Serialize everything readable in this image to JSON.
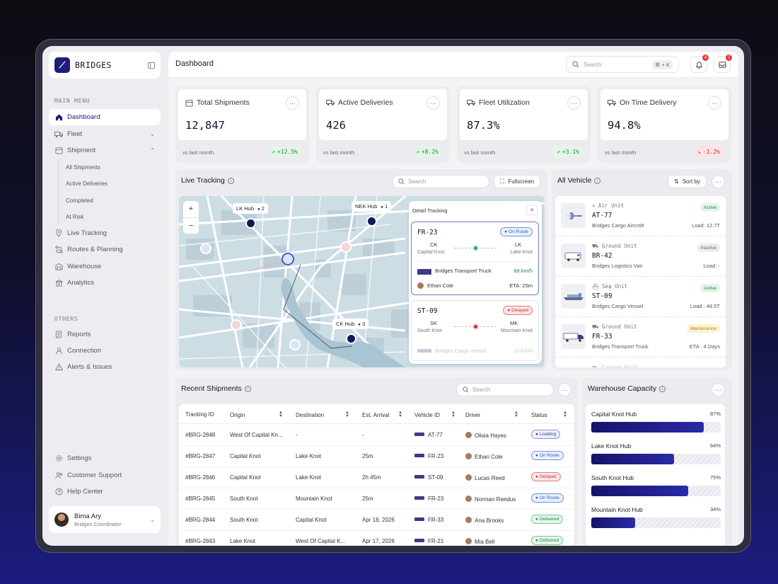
{
  "app": {
    "brand": "BRIDGES",
    "page_title": "Dashboard"
  },
  "topbar": {
    "search_placeholder": "Search",
    "shortcut": "⌘ + K",
    "notifications_count": "4",
    "messages_count": "7"
  },
  "sidebar": {
    "main_menu_label": "MAIN MENU",
    "items": [
      {
        "label": "Dashboard",
        "icon": "home-icon",
        "active": true
      },
      {
        "label": "Fleet",
        "icon": "truck-icon"
      },
      {
        "label": "Shipment",
        "icon": "box-icon"
      },
      {
        "label": "Live Tracking",
        "icon": "pin-icon"
      },
      {
        "label": "Routes & Planning",
        "icon": "route-icon"
      },
      {
        "label": "Warehouse",
        "icon": "warehouse-icon"
      },
      {
        "label": "Analytics",
        "icon": "analytics-icon"
      }
    ],
    "shipment_sub": [
      "All Shipments",
      "Active Deliveries",
      "Completed",
      "At Risk"
    ],
    "others_label": "OTHERS",
    "others": [
      {
        "label": "Reports",
        "icon": "report-icon"
      },
      {
        "label": "Connection",
        "icon": "users-icon"
      },
      {
        "label": "Alerts & Issues",
        "icon": "alert-icon"
      }
    ],
    "bottom": [
      {
        "label": "Settings",
        "icon": "gear-icon"
      },
      {
        "label": "Customer Support",
        "icon": "support-icon"
      },
      {
        "label": "Help Center",
        "icon": "help-icon"
      }
    ],
    "user": {
      "name": "Bima Ary",
      "role": "Bridges Coordinator"
    }
  },
  "stats": [
    {
      "title": "Total Shipments",
      "value": "12,847",
      "vs": "vs last month",
      "change": "+12.5%",
      "dir": "up"
    },
    {
      "title": "Active Deliveries",
      "value": "426",
      "vs": "vs last month",
      "change": "+8.2%",
      "dir": "up"
    },
    {
      "title": "Fleet Utilization",
      "value": "87.3%",
      "vs": "vs last month",
      "change": "+3.1%",
      "dir": "up"
    },
    {
      "title": "On Time Delivery",
      "value": "94.8%",
      "vs": "vs last month",
      "change": "-1.2%",
      "dir": "down"
    }
  ],
  "live_tracking": {
    "title": "Live Tracking",
    "search_placeholder": "Search",
    "fullscreen": "Fullscreen",
    "zoom_in": "+",
    "zoom_out": "−",
    "hubs": [
      {
        "name": "LK Hub",
        "count": "2"
      },
      {
        "name": "NEK Hub",
        "count": "1"
      },
      {
        "name": "CK Hub",
        "count": "3"
      }
    ],
    "detail": {
      "title": "Detail Tracking",
      "cards": [
        {
          "id": "FR-23",
          "status": "On Route",
          "from_code": "CK",
          "from_name": "Capital Knot",
          "to_code": "LK",
          "to_name": "Lake Knot",
          "vehicle": "Bridges Transport Truck",
          "speed": "68 km/h",
          "driver": "Ethan Cole",
          "eta": "ETA: 25m"
        },
        {
          "id": "ST-09",
          "status": "Delayed",
          "from_code": "SK",
          "from_name": "South Knot",
          "to_code": "MK",
          "to_name": "Mountain Knot",
          "vehicle": "Bridges Cargo Vessel",
          "speed": "12 km/h"
        }
      ]
    }
  },
  "vehicles": {
    "title": "All Vehicle",
    "sort": "Sort by",
    "items": [
      {
        "type": "Air Unit",
        "id": "AT-77",
        "name": "Bridges Cargo Aircraft",
        "status": "Active",
        "status_class": "active",
        "load": "Load: 12.7T"
      },
      {
        "type": "Ground Unit",
        "id": "BR-42",
        "name": "Bridges Logistics Van",
        "status": "Inactive",
        "status_class": "inactive",
        "load": "Load: -"
      },
      {
        "type": "Sea Unit",
        "id": "ST-09",
        "name": "Bridges Cargo Vessel",
        "status": "Active",
        "status_class": "active",
        "load": "Load : 48.5T"
      },
      {
        "type": "Ground Unit",
        "id": "FR-33",
        "name": "Bridges Transport Truck",
        "status": "Maintenance",
        "status_class": "maint",
        "load": "ETA : 4 Days"
      },
      {
        "type": "Ground Unit",
        "id": "",
        "name": "",
        "status": "",
        "status_class": "active",
        "load": ""
      }
    ]
  },
  "shipments": {
    "title": "Recent Shipments",
    "search_placeholder": "Search",
    "columns": [
      "Tracking ID",
      "Origin",
      "Destination",
      "Est. Arrival",
      "Vehicle ID",
      "Driver",
      "Status"
    ],
    "rows": [
      {
        "id": "#BRG-2848",
        "origin": "West Of Capital Kn...",
        "dest": "-",
        "eta": "-",
        "vehicle": "AT-77",
        "driver": "Olivia Hayes",
        "status": "Loading",
        "status_class": "loading"
      },
      {
        "id": "#BRG-2847",
        "origin": "Capital Knot",
        "dest": "Lake Knot",
        "eta": "25m",
        "vehicle": "FR-23",
        "driver": "Ethan Cole",
        "status": "On Route",
        "status_class": "onroute"
      },
      {
        "id": "#BRG-2846",
        "origin": "Capital Knot",
        "dest": "Lake Knot",
        "eta": "2h 45m",
        "vehicle": "ST-09",
        "driver": "Lucas Reed",
        "status": "Delayed",
        "status_class": "delayed"
      },
      {
        "id": "#BRG-2845",
        "origin": "South Knot",
        "dest": "Mountain Knot",
        "eta": "25m",
        "vehicle": "FR-23",
        "driver": "Norman Reedus",
        "status": "On Route",
        "status_class": "onroute"
      },
      {
        "id": "#BRG-2844",
        "origin": "South Knot",
        "dest": "Capital Knot",
        "eta": "Apr 18, 2026",
        "vehicle": "FR-33",
        "driver": "Ana Brooks",
        "status": "Delivered",
        "status_class": "delivered"
      },
      {
        "id": "#BRG-2843",
        "origin": "Lake Knot",
        "dest": "West Of Capital K...",
        "eta": "Apr 17, 2026",
        "vehicle": "FR-21",
        "driver": "Mia Bell",
        "status": "Delivered",
        "status_class": "delivered"
      }
    ]
  },
  "warehouse": {
    "title": "Warehouse Capacity",
    "hubs": [
      {
        "name": "Capital Knot Hub",
        "pct_label": "87%",
        "pct": 0.87
      },
      {
        "name": "Lake Knot Hub",
        "pct_label": "64%",
        "pct": 0.64
      },
      {
        "name": "South Knot Hub",
        "pct_label": "75%",
        "pct": 0.75
      },
      {
        "name": "Mountain Knot Hub",
        "pct_label": "34%",
        "pct": 0.34
      }
    ]
  }
}
